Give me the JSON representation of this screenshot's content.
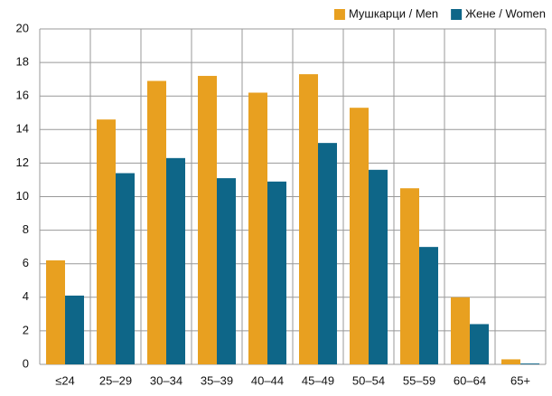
{
  "chart_data": {
    "type": "bar",
    "categories": [
      "≤24",
      "25–29",
      "30–34",
      "35–39",
      "40–44",
      "45–49",
      "50–54",
      "55–59",
      "60–64",
      "65+"
    ],
    "series": [
      {
        "name": "Мушкарци / Men",
        "color": "#e8a020",
        "values": [
          6.2,
          14.6,
          16.9,
          17.2,
          16.2,
          17.3,
          15.3,
          10.5,
          4.0,
          0.3
        ]
      },
      {
        "name": "Жене / Women",
        "color": "#0e6688",
        "values": [
          4.1,
          11.4,
          12.3,
          11.1,
          10.9,
          13.2,
          11.6,
          7.0,
          2.4,
          0.05
        ]
      }
    ],
    "ylim": [
      0,
      20
    ],
    "yticks": [
      0,
      2,
      4,
      6,
      8,
      10,
      12,
      14,
      16,
      18,
      20
    ],
    "grid": true,
    "legend": "top-right"
  }
}
